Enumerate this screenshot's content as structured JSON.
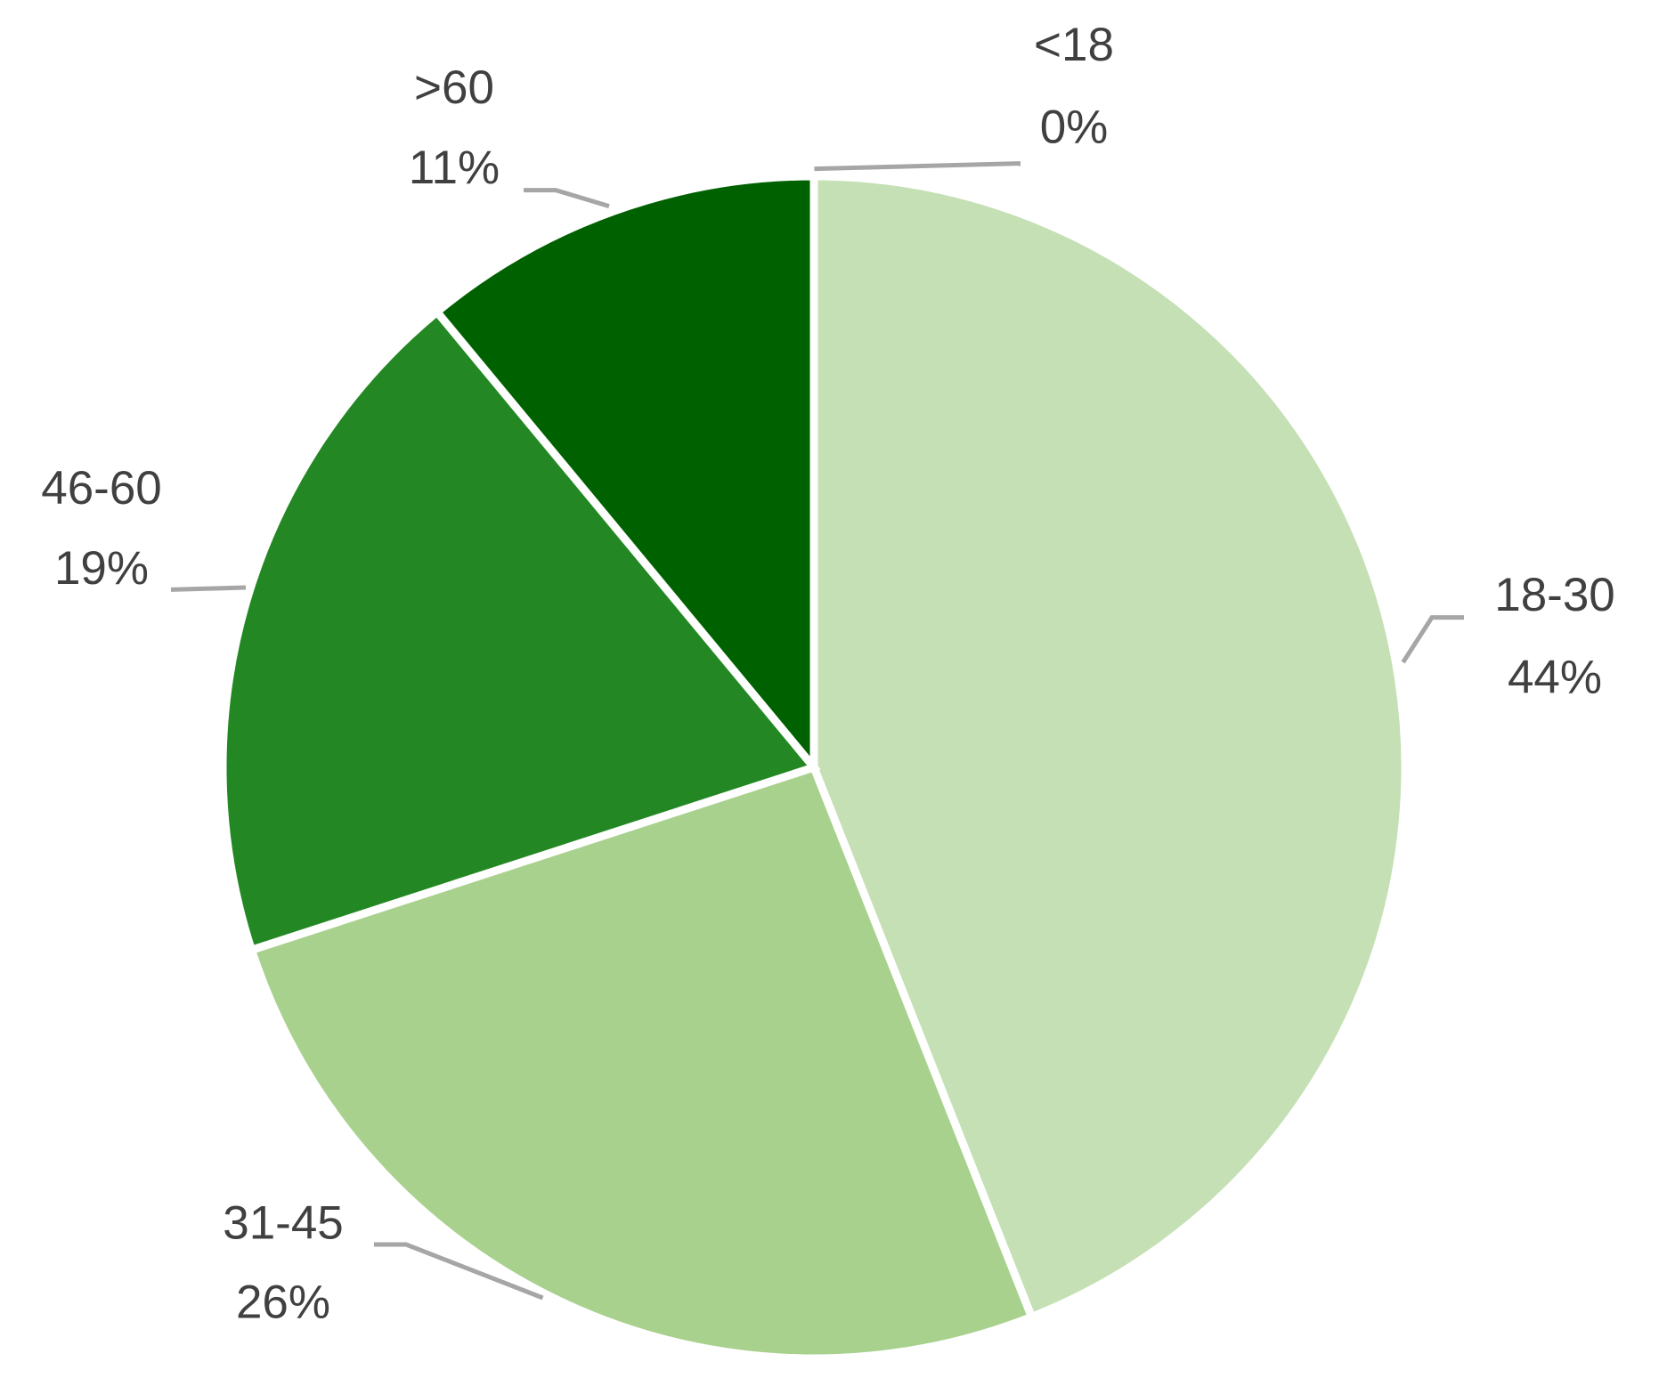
{
  "chart_data": {
    "type": "pie",
    "categories": [
      "<18",
      "18-30",
      "31-45",
      "46-60",
      ">60"
    ],
    "values": [
      0,
      44,
      26,
      19,
      11
    ],
    "value_labels": [
      "0%",
      "44%",
      "26%",
      "19%",
      "11%"
    ],
    "colors": [
      "#dff0d0",
      "#c5e0b4",
      "#a9d18e",
      "#238823",
      "#006100"
    ]
  }
}
